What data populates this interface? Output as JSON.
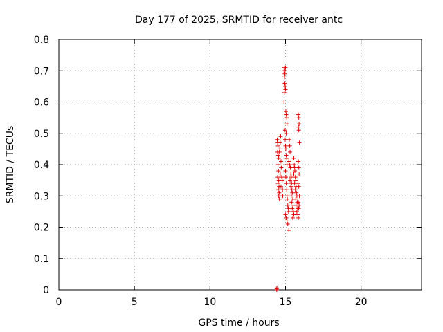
{
  "chart_data": {
    "type": "scatter",
    "title": "Day 177 of 2025, SRMTID for receiver antc",
    "xlabel": "GPS time / hours",
    "ylabel": "SRMTID / TECUs",
    "xlim": [
      0,
      24
    ],
    "ylim": [
      0,
      0.8
    ],
    "xticks": [
      0,
      5,
      10,
      15,
      20
    ],
    "xtick_labels": [
      "0",
      "5",
      "10",
      "15",
      "20"
    ],
    "yticks": [
      0,
      0.1,
      0.2,
      0.3,
      0.4,
      0.5,
      0.6,
      0.7,
      0.8
    ],
    "ytick_labels": [
      "0",
      "0.1",
      "0.2",
      "0.3",
      "0.4",
      "0.5",
      "0.6",
      "0.7",
      "0.8"
    ],
    "grid": true,
    "legend": "none",
    "marker_color": "#e00000",
    "series": [
      {
        "name": "SRMTID",
        "points": [
          [
            14.42,
            0.0
          ],
          [
            14.42,
            0.003
          ],
          [
            14.43,
            0.006
          ],
          [
            14.45,
            0.48
          ],
          [
            14.48,
            0.47
          ],
          [
            14.5,
            0.46
          ],
          [
            14.47,
            0.44
          ],
          [
            14.52,
            0.43
          ],
          [
            14.55,
            0.42
          ],
          [
            14.5,
            0.4
          ],
          [
            14.53,
            0.38
          ],
          [
            14.48,
            0.36
          ],
          [
            14.55,
            0.35
          ],
          [
            14.5,
            0.34
          ],
          [
            14.57,
            0.33
          ],
          [
            14.52,
            0.32
          ],
          [
            14.58,
            0.31
          ],
          [
            14.55,
            0.3
          ],
          [
            14.6,
            0.29
          ],
          [
            14.62,
            0.45
          ],
          [
            14.65,
            0.47
          ],
          [
            14.6,
            0.44
          ],
          [
            14.68,
            0.49
          ],
          [
            14.7,
            0.41
          ],
          [
            14.72,
            0.39
          ],
          [
            14.65,
            0.37
          ],
          [
            14.75,
            0.36
          ],
          [
            14.78,
            0.35
          ],
          [
            14.7,
            0.33
          ],
          [
            14.8,
            0.32
          ],
          [
            14.82,
            0.3
          ],
          [
            14.9,
            0.7
          ],
          [
            14.92,
            0.71
          ],
          [
            14.95,
            0.69
          ],
          [
            14.97,
            0.7
          ],
          [
            15.0,
            0.71
          ],
          [
            14.93,
            0.68
          ],
          [
            14.95,
            0.66
          ],
          [
            14.98,
            0.65
          ],
          [
            15.0,
            0.64
          ],
          [
            14.92,
            0.63
          ],
          [
            14.9,
            0.6
          ],
          [
            15.02,
            0.57
          ],
          [
            15.05,
            0.56
          ],
          [
            15.08,
            0.55
          ],
          [
            15.1,
            0.53
          ],
          [
            14.97,
            0.51
          ],
          [
            15.05,
            0.5
          ],
          [
            14.98,
            0.48
          ],
          [
            15.0,
            0.46
          ],
          [
            15.02,
            0.45
          ],
          [
            15.05,
            0.43
          ],
          [
            15.08,
            0.42
          ],
          [
            15.1,
            0.4
          ],
          [
            15.0,
            0.38
          ],
          [
            15.02,
            0.36
          ],
          [
            15.05,
            0.34
          ],
          [
            15.08,
            0.32
          ],
          [
            15.1,
            0.3
          ],
          [
            15.12,
            0.29
          ],
          [
            15.15,
            0.27
          ],
          [
            15.18,
            0.26
          ],
          [
            15.2,
            0.25
          ],
          [
            15.0,
            0.24
          ],
          [
            15.05,
            0.23
          ],
          [
            15.1,
            0.22
          ],
          [
            15.15,
            0.21
          ],
          [
            15.22,
            0.19
          ],
          [
            15.25,
            0.48
          ],
          [
            15.28,
            0.46
          ],
          [
            15.3,
            0.44
          ],
          [
            15.22,
            0.41
          ],
          [
            15.28,
            0.4
          ],
          [
            15.32,
            0.39
          ],
          [
            15.35,
            0.37
          ],
          [
            15.38,
            0.36
          ],
          [
            15.3,
            0.35
          ],
          [
            15.4,
            0.34
          ],
          [
            15.35,
            0.33
          ],
          [
            15.42,
            0.32
          ],
          [
            15.45,
            0.31
          ],
          [
            15.38,
            0.3
          ],
          [
            15.48,
            0.29
          ],
          [
            15.4,
            0.28
          ],
          [
            15.5,
            0.27
          ],
          [
            15.45,
            0.26
          ],
          [
            15.52,
            0.25
          ],
          [
            15.55,
            0.24
          ],
          [
            15.48,
            0.23
          ],
          [
            15.55,
            0.42
          ],
          [
            15.58,
            0.4
          ],
          [
            15.6,
            0.39
          ],
          [
            15.62,
            0.38
          ],
          [
            15.55,
            0.37
          ],
          [
            15.65,
            0.36
          ],
          [
            15.68,
            0.35
          ],
          [
            15.6,
            0.34
          ],
          [
            15.7,
            0.33
          ],
          [
            15.65,
            0.32
          ],
          [
            15.72,
            0.31
          ],
          [
            15.75,
            0.3
          ],
          [
            15.68,
            0.29
          ],
          [
            15.78,
            0.28
          ],
          [
            15.7,
            0.27
          ],
          [
            15.8,
            0.26
          ],
          [
            15.75,
            0.25
          ],
          [
            15.82,
            0.24
          ],
          [
            15.85,
            0.23
          ],
          [
            15.85,
            0.56
          ],
          [
            15.88,
            0.55
          ],
          [
            15.9,
            0.53
          ],
          [
            15.85,
            0.52
          ],
          [
            15.88,
            0.51
          ],
          [
            15.92,
            0.47
          ],
          [
            15.85,
            0.41
          ],
          [
            15.88,
            0.39
          ],
          [
            15.9,
            0.37
          ],
          [
            15.82,
            0.34
          ],
          [
            15.88,
            0.33
          ],
          [
            15.92,
            0.3
          ],
          [
            15.85,
            0.28
          ],
          [
            15.9,
            0.27
          ],
          [
            15.87,
            0.26
          ]
        ]
      }
    ]
  }
}
